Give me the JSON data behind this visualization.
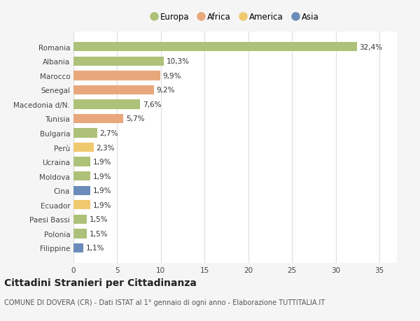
{
  "title": "Cittadini Stranieri per Cittadinanza",
  "subtitle": "COMUNE DI DOVERA (CR) - Dati ISTAT al 1° gennaio di ogni anno - Elaborazione TUTTITALIA.IT",
  "categories": [
    "Romania",
    "Albania",
    "Marocco",
    "Senegal",
    "Macedonia d/N.",
    "Tunisia",
    "Bulgaria",
    "Perù",
    "Ucraina",
    "Moldova",
    "Cina",
    "Ecuador",
    "Paesi Bassi",
    "Polonia",
    "Filippine"
  ],
  "values": [
    32.4,
    10.3,
    9.9,
    9.2,
    7.6,
    5.7,
    2.7,
    2.3,
    1.9,
    1.9,
    1.9,
    1.9,
    1.5,
    1.5,
    1.1
  ],
  "labels": [
    "32,4%",
    "10,3%",
    "9,9%",
    "9,2%",
    "7,6%",
    "5,7%",
    "2,7%",
    "2,3%",
    "1,9%",
    "1,9%",
    "1,9%",
    "1,9%",
    "1,5%",
    "1,5%",
    "1,1%"
  ],
  "colors": [
    "#adc178",
    "#adc178",
    "#e8a87c",
    "#e8a87c",
    "#adc178",
    "#e8a87c",
    "#adc178",
    "#f0c96e",
    "#adc178",
    "#adc178",
    "#6b8cba",
    "#f0c96e",
    "#adc178",
    "#adc178",
    "#6b8cba"
  ],
  "legend": [
    {
      "label": "Europa",
      "color": "#adc178"
    },
    {
      "label": "Africa",
      "color": "#e8a87c"
    },
    {
      "label": "America",
      "color": "#f0c96e"
    },
    {
      "label": "Asia",
      "color": "#6b8cba"
    }
  ],
  "xlim": [
    0,
    37
  ],
  "xticks": [
    0,
    5,
    10,
    15,
    20,
    25,
    30,
    35
  ],
  "background_color": "#f5f5f5",
  "bar_background": "#ffffff",
  "grid_color": "#dddddd",
  "label_fontsize": 7.5,
  "tick_fontsize": 7.5,
  "title_fontsize": 10,
  "subtitle_fontsize": 7.0
}
